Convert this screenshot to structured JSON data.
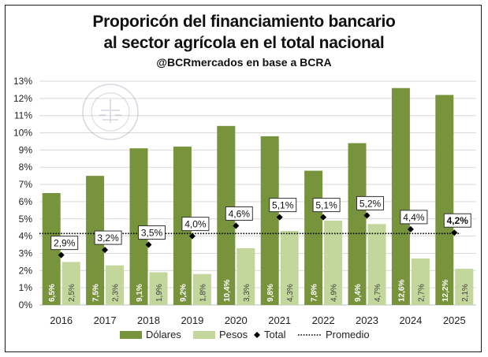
{
  "chart_data": {
    "type": "bar",
    "title": "Proporicón del financiamiento bancario",
    "title_line2": "al sector agrícola en el total nacional",
    "subtitle": "@BCRmercados en base a BCRA",
    "categories": [
      "2016",
      "2017",
      "2018",
      "2019",
      "2020",
      "2021",
      "2022",
      "2023",
      "2024",
      "2025"
    ],
    "series": [
      {
        "name": "Dólares",
        "kind": "bar",
        "color": "#77933C",
        "values": [
          6.5,
          7.5,
          9.1,
          9.2,
          10.4,
          9.8,
          7.8,
          9.4,
          12.6,
          12.2
        ],
        "labels": [
          "6,5%",
          "7,5%",
          "9,1%",
          "9,2%",
          "10,4%",
          "9,8%",
          "7,8%",
          "9,4%",
          "12,6%",
          "12,2%"
        ]
      },
      {
        "name": "Pesos",
        "kind": "bar",
        "color": "#C3D69B",
        "values": [
          2.5,
          2.3,
          1.9,
          1.8,
          3.3,
          4.3,
          4.9,
          4.7,
          2.7,
          2.1
        ],
        "labels": [
          "2,5%",
          "2,3%",
          "1,9%",
          "1,8%",
          "3,3%",
          "4,3%",
          "4,9%",
          "4,7%",
          "2,7%",
          "2,1%"
        ]
      },
      {
        "name": "Total",
        "kind": "marker",
        "color": "#000000",
        "values": [
          2.9,
          3.2,
          3.5,
          4.0,
          4.6,
          5.1,
          5.1,
          5.2,
          4.4,
          4.2
        ],
        "labels": [
          "2,9%",
          "3,2%",
          "3,5%",
          "4,0%",
          "4,6%",
          "5,1%",
          "5,1%",
          "5,2%",
          "4,4%",
          "4,2%"
        ]
      },
      {
        "name": "Promedio",
        "kind": "line",
        "color": "#000000",
        "value": 4.15
      }
    ],
    "yticks": [
      "0%",
      "1%",
      "2%",
      "3%",
      "4%",
      "5%",
      "6%",
      "7%",
      "8%",
      "9%",
      "10%",
      "11%",
      "12%",
      "13%"
    ],
    "ylim": [
      0,
      13
    ],
    "xlabel": "",
    "ylabel": "",
    "grid": true,
    "legend": "bottom",
    "watermark": "BOLSA DE COMERCIO DE ROSARIO"
  }
}
